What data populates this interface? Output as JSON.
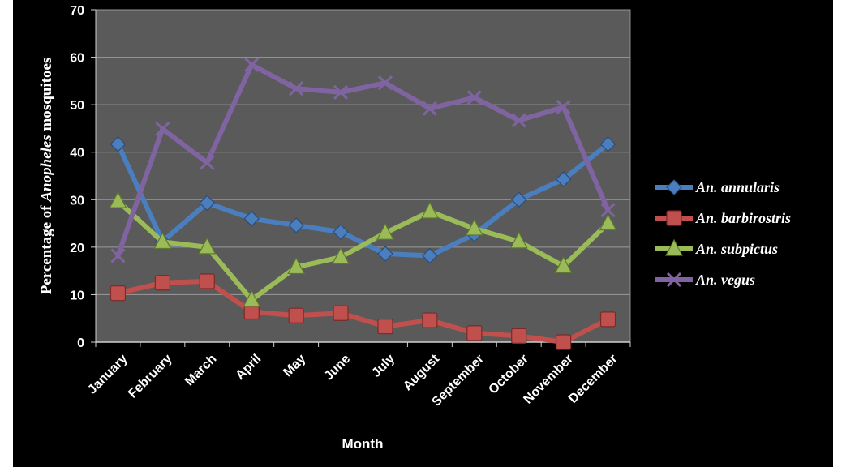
{
  "chart_data": {
    "type": "line",
    "xlabel": "Month",
    "ylabel": {
      "prefix": "Percentage of ",
      "italic": "Anopheles",
      "suffix": " mosquitoes"
    },
    "ylim": [
      0,
      70
    ],
    "yticks": [
      0,
      10,
      20,
      30,
      40,
      50,
      60,
      70
    ],
    "grid": true,
    "legend_position": "right",
    "categories": [
      "January",
      "February",
      "March",
      "April",
      "May",
      "June",
      "July",
      "August",
      "September",
      "October",
      "November",
      "December"
    ],
    "series": [
      {
        "name": "An. annularis",
        "color": "#4a7ebf",
        "marker": "diamond",
        "values": [
          41.7,
          21.2,
          29.3,
          26.0,
          24.6,
          23.2,
          18.6,
          18.2,
          22.7,
          30.0,
          34.3,
          41.7
        ]
      },
      {
        "name": "An. barbirostris",
        "color": "#c0504d",
        "marker": "square",
        "values": [
          10.3,
          12.5,
          12.8,
          6.4,
          5.6,
          6.1,
          3.3,
          4.6,
          1.9,
          1.3,
          0,
          4.8
        ]
      },
      {
        "name": "An. subpictus",
        "color": "#9bbb59",
        "marker": "triangle",
        "values": [
          29.7,
          21.1,
          20.0,
          8.9,
          15.8,
          17.9,
          23.0,
          27.5,
          23.9,
          21.2,
          16.0,
          25.0
        ]
      },
      {
        "name": "An. vegus",
        "color": "#8064a2",
        "marker": "x",
        "values": [
          18.2,
          44.9,
          37.8,
          58.4,
          53.4,
          52.6,
          54.6,
          49.2,
          51.5,
          46.7,
          49.5,
          27.8
        ]
      }
    ]
  }
}
